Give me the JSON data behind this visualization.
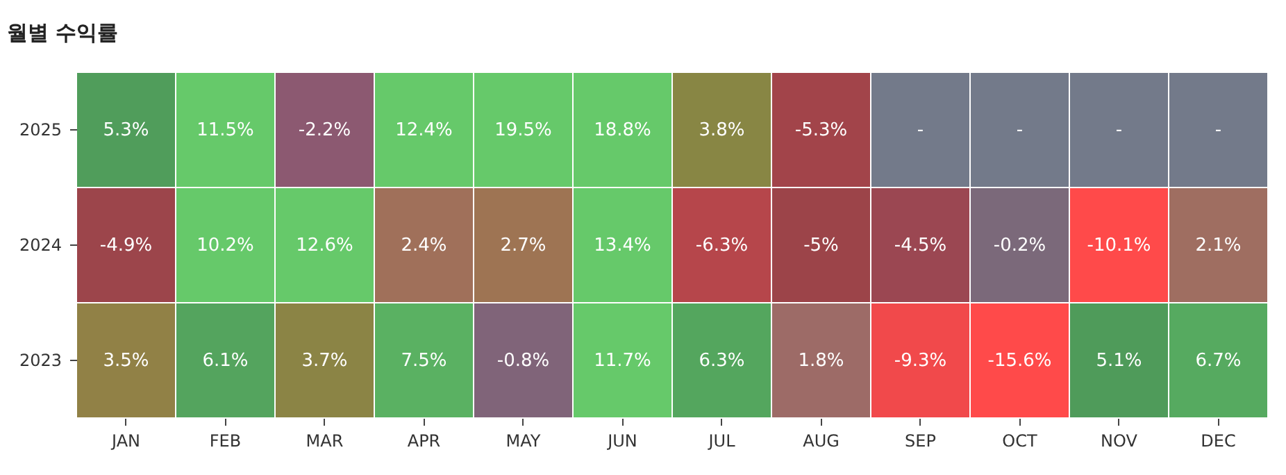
{
  "chart_data": {
    "type": "heatmap",
    "title": "월별 수익률",
    "categories": [
      "JAN",
      "FEB",
      "MAR",
      "APR",
      "MAY",
      "JUN",
      "JUL",
      "AUG",
      "SEP",
      "OCT",
      "NOV",
      "DEC"
    ],
    "y_categories": [
      "2025",
      "2024",
      "2023"
    ],
    "cells": [
      [
        5.3,
        11.5,
        -2.2,
        12.4,
        19.5,
        18.8,
        3.8,
        -5.3,
        null,
        null,
        null,
        null
      ],
      [
        -4.9,
        10.2,
        12.6,
        2.4,
        2.7,
        13.4,
        -6.3,
        -5,
        -4.5,
        -0.2,
        -10.1,
        2.1
      ],
      [
        3.5,
        6.1,
        3.7,
        7.5,
        -0.8,
        11.7,
        6.3,
        1.8,
        -9.3,
        -15.6,
        5.1,
        6.7
      ]
    ],
    "cell_labels": [
      [
        "5.3%",
        "11.5%",
        "-2.2%",
        "12.4%",
        "19.5%",
        "18.8%",
        "3.8%",
        "-5.3%",
        "-",
        "-",
        "-",
        "-"
      ],
      [
        "-4.9%",
        "10.2%",
        "12.6%",
        "2.4%",
        "2.7%",
        "13.4%",
        "-6.3%",
        "-5%",
        "-4.5%",
        "-0.2%",
        "-10.1%",
        "2.1%"
      ],
      [
        "3.5%",
        "6.1%",
        "3.7%",
        "7.5%",
        "-0.8%",
        "11.7%",
        "6.3%",
        "1.8%",
        "-9.3%",
        "-15.6%",
        "5.1%",
        "6.7%"
      ]
    ]
  }
}
